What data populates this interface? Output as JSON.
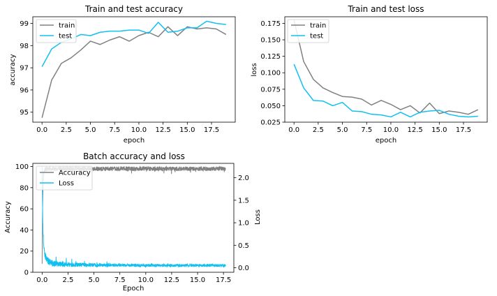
{
  "chart_data": [
    {
      "type": "line",
      "title": "Train and test accuracy",
      "xlabel": "epoch",
      "ylabel": "accuracy",
      "xlim": [
        -0.95,
        19.95
      ],
      "ylim": [
        94.55,
        99.3
      ],
      "xticks": [
        0.0,
        2.5,
        5.0,
        7.5,
        10.0,
        12.5,
        15.0,
        17.5
      ],
      "xtick_labels": [
        "0.0",
        "2.5",
        "5.0",
        "7.5",
        "10.0",
        "12.5",
        "15.0",
        "17.5"
      ],
      "yticks": [
        95,
        96,
        97,
        98,
        99
      ],
      "ytick_labels": [
        "95",
        "96",
        "97",
        "98",
        "99"
      ],
      "legend_position": "top-left",
      "x": [
        0,
        1,
        2,
        3,
        4,
        5,
        6,
        7,
        8,
        9,
        10,
        11,
        12,
        13,
        14,
        15,
        16,
        17,
        18,
        19
      ],
      "series": [
        {
          "name": "train",
          "color": "#808080",
          "values": [
            94.75,
            96.45,
            97.2,
            97.45,
            97.8,
            98.2,
            98.05,
            98.25,
            98.4,
            98.2,
            98.45,
            98.6,
            98.4,
            98.85,
            98.45,
            98.85,
            98.75,
            98.8,
            98.75,
            98.5
          ]
        },
        {
          "name": "test",
          "color": "#12C0F0",
          "values": [
            97.05,
            97.85,
            98.15,
            98.3,
            98.5,
            98.45,
            98.6,
            98.65,
            98.65,
            98.7,
            98.7,
            98.55,
            99.05,
            98.6,
            98.65,
            98.8,
            98.8,
            99.1,
            99.0,
            98.95
          ]
        }
      ]
    },
    {
      "type": "line",
      "title": "Train and test loss",
      "xlabel": "epoch",
      "ylabel": "loss",
      "xlim": [
        -0.95,
        19.95
      ],
      "ylim": [
        0.025,
        0.185
      ],
      "xticks": [
        0.0,
        2.5,
        5.0,
        7.5,
        10.0,
        12.5,
        15.0,
        17.5
      ],
      "xtick_labels": [
        "0.0",
        "2.5",
        "5.0",
        "7.5",
        "10.0",
        "12.5",
        "15.0",
        "17.5"
      ],
      "yticks": [
        0.025,
        0.05,
        0.075,
        0.1,
        0.125,
        0.15,
        0.175
      ],
      "ytick_labels": [
        "0.025",
        "0.050",
        "0.075",
        "0.100",
        "0.125",
        "0.150",
        "0.175"
      ],
      "legend_position": "top-left",
      "x": [
        0,
        1,
        2,
        3,
        4,
        5,
        6,
        7,
        8,
        9,
        10,
        11,
        12,
        13,
        14,
        15,
        16,
        17,
        18,
        19
      ],
      "series": [
        {
          "name": "train",
          "color": "#808080",
          "values": [
            0.18,
            0.117,
            0.09,
            0.077,
            0.07,
            0.064,
            0.063,
            0.06,
            0.051,
            0.058,
            0.052,
            0.044,
            0.05,
            0.039,
            0.054,
            0.038,
            0.042,
            0.04,
            0.037,
            0.044
          ]
        },
        {
          "name": "test",
          "color": "#12C0F0",
          "values": [
            0.113,
            0.077,
            0.058,
            0.057,
            0.05,
            0.055,
            0.042,
            0.041,
            0.037,
            0.036,
            0.033,
            0.04,
            0.033,
            0.04,
            0.042,
            0.043,
            0.037,
            0.034,
            0.033,
            0.034
          ]
        }
      ]
    },
    {
      "type": "line",
      "title": "Batch accuracy and loss",
      "xlabel": "Epoch",
      "ylabel": "Accuracy",
      "ylabel_right": "Loss",
      "xlim": [
        -0.9,
        18.5
      ],
      "ylim": [
        0,
        103
      ],
      "ylim_right": [
        -0.1,
        2.32
      ],
      "xticks": [
        0.0,
        2.5,
        5.0,
        7.5,
        10.0,
        12.5,
        15.0,
        17.5
      ],
      "xtick_labels": [
        "0.0",
        "2.5",
        "5.0",
        "7.5",
        "10.0",
        "12.5",
        "15.0",
        "17.5"
      ],
      "yticks": [
        0,
        20,
        40,
        60,
        80,
        100
      ],
      "ytick_labels": [
        "0",
        "20",
        "40",
        "60",
        "80",
        "100"
      ],
      "yticks_right": [
        0.0,
        0.5,
        1.0,
        1.5,
        2.0
      ],
      "ytick_labels_right": [
        "0.0",
        "0.5",
        "1.0",
        "1.5",
        "2.0"
      ],
      "legend_position": "top-left",
      "x_range": [
        0,
        17.7
      ],
      "series": [
        {
          "name": "Accuracy",
          "color": "#808080",
          "axis": "left",
          "start": 8,
          "band": [
            93,
            100
          ]
        },
        {
          "name": "Loss",
          "color": "#12C0F0",
          "axis": "right",
          "start": 2.25,
          "band": [
            0.02,
            0.2
          ]
        }
      ]
    }
  ]
}
